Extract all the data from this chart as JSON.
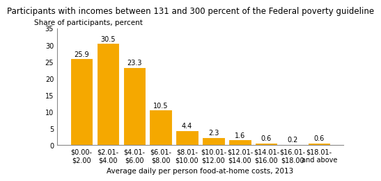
{
  "title": "Participants with incomes between 131 and 300 percent of the Federal poverty guideline",
  "ylabel": "Share of participants, percent",
  "xlabel": "Average daily per person food-at-home costs, 2013",
  "categories": [
    "$0.00-\n$2.00",
    "$2.01-\n$4.00",
    "$4.01-\n$6.00",
    "$6.01-\n$8.00",
    "$8.01-\n$10.00",
    "$10.01-\n$12.00",
    "$12.01-\n$14.00",
    "$14.01-\n$16.00",
    "$16.01-\n$18.00",
    "$18.01-\nand above"
  ],
  "values": [
    25.9,
    30.5,
    23.3,
    10.5,
    4.4,
    2.3,
    1.6,
    0.6,
    0.2,
    0.6
  ],
  "bar_color": "#F5A800",
  "bar_edge_color": "#FFFFFF",
  "ylim": [
    0,
    35
  ],
  "yticks": [
    0,
    5,
    10,
    15,
    20,
    25,
    30,
    35
  ],
  "title_fontsize": 8.5,
  "label_fontsize": 7.5,
  "tick_fontsize": 7.0,
  "value_label_fontsize": 7.0,
  "background_color": "#FFFFFF"
}
